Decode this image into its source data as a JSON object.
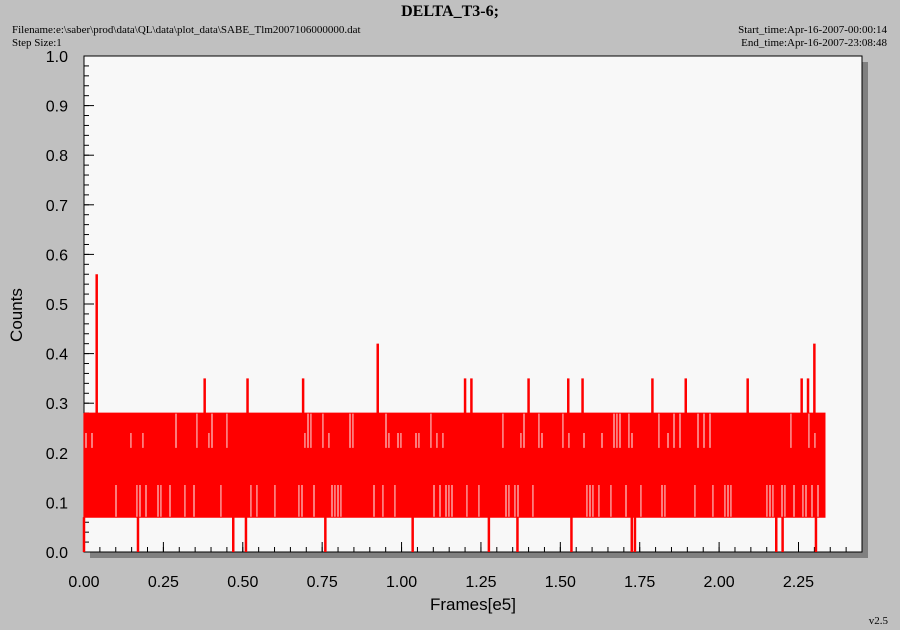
{
  "header": {
    "title": "DELTA_T3-6;",
    "filename": "Filename:e:\\saber\\prod\\data\\QL\\data\\plot_data\\SABE_Tlm2007106000000.dat",
    "step_size": "Step Size:1",
    "start_time": "Start_time:Apr-16-2007-00:00:14",
    "end_time": "End_time:Apr-16-2007-23:08:48"
  },
  "version": "v2.5",
  "colors": {
    "series": "#ff0000",
    "plot_bg": "#f8f8f8",
    "page_bg": "#c0c0c0"
  },
  "chart_data": {
    "type": "line",
    "xlabel": "Frames[e5]",
    "ylabel": "Counts",
    "xlim": [
      0,
      2.45
    ],
    "ylim": [
      0,
      1.0
    ],
    "x_ticks": [
      "0.00",
      "0.25",
      "0.50",
      "0.75",
      "1.00",
      "1.25",
      "1.50",
      "1.75",
      "2.00",
      "2.25"
    ],
    "y_ticks": [
      "0.0",
      "0.1",
      "0.2",
      "0.3",
      "0.4",
      "0.5",
      "0.6",
      "0.7",
      "0.8",
      "0.9",
      "1.0"
    ],
    "grid": false,
    "series": [
      {
        "color": "#ff0000",
        "band_low": 0.07,
        "band_high": 0.28,
        "x_range": [
          0.0,
          2.335
        ],
        "spikes": [
          {
            "x": 0.04,
            "y": 0.56
          },
          {
            "x": 0.38,
            "y": 0.35
          },
          {
            "x": 0.515,
            "y": 0.35
          },
          {
            "x": 0.69,
            "y": 0.35
          },
          {
            "x": 0.925,
            "y": 0.42
          },
          {
            "x": 1.2,
            "y": 0.35
          },
          {
            "x": 1.22,
            "y": 0.35
          },
          {
            "x": 1.4,
            "y": 0.35
          },
          {
            "x": 1.525,
            "y": 0.35
          },
          {
            "x": 1.57,
            "y": 0.35
          },
          {
            "x": 1.79,
            "y": 0.35
          },
          {
            "x": 1.895,
            "y": 0.35
          },
          {
            "x": 2.09,
            "y": 0.35
          },
          {
            "x": 2.26,
            "y": 0.35
          },
          {
            "x": 2.28,
            "y": 0.35
          },
          {
            "x": 2.3,
            "y": 0.42
          }
        ],
        "dips": [
          {
            "x": 0.0,
            "y": 0.0
          },
          {
            "x": 0.17,
            "y": 0.0
          },
          {
            "x": 0.47,
            "y": 0.0
          },
          {
            "x": 0.51,
            "y": 0.0
          },
          {
            "x": 0.76,
            "y": 0.0
          },
          {
            "x": 1.035,
            "y": 0.0
          },
          {
            "x": 1.275,
            "y": 0.0
          },
          {
            "x": 1.365,
            "y": 0.0
          },
          {
            "x": 1.535,
            "y": 0.0
          },
          {
            "x": 1.725,
            "y": 0.0
          },
          {
            "x": 1.735,
            "y": 0.0
          },
          {
            "x": 2.18,
            "y": 0.0
          },
          {
            "x": 2.2,
            "y": 0.0
          },
          {
            "x": 2.305,
            "y": 0.0
          }
        ]
      }
    ]
  }
}
